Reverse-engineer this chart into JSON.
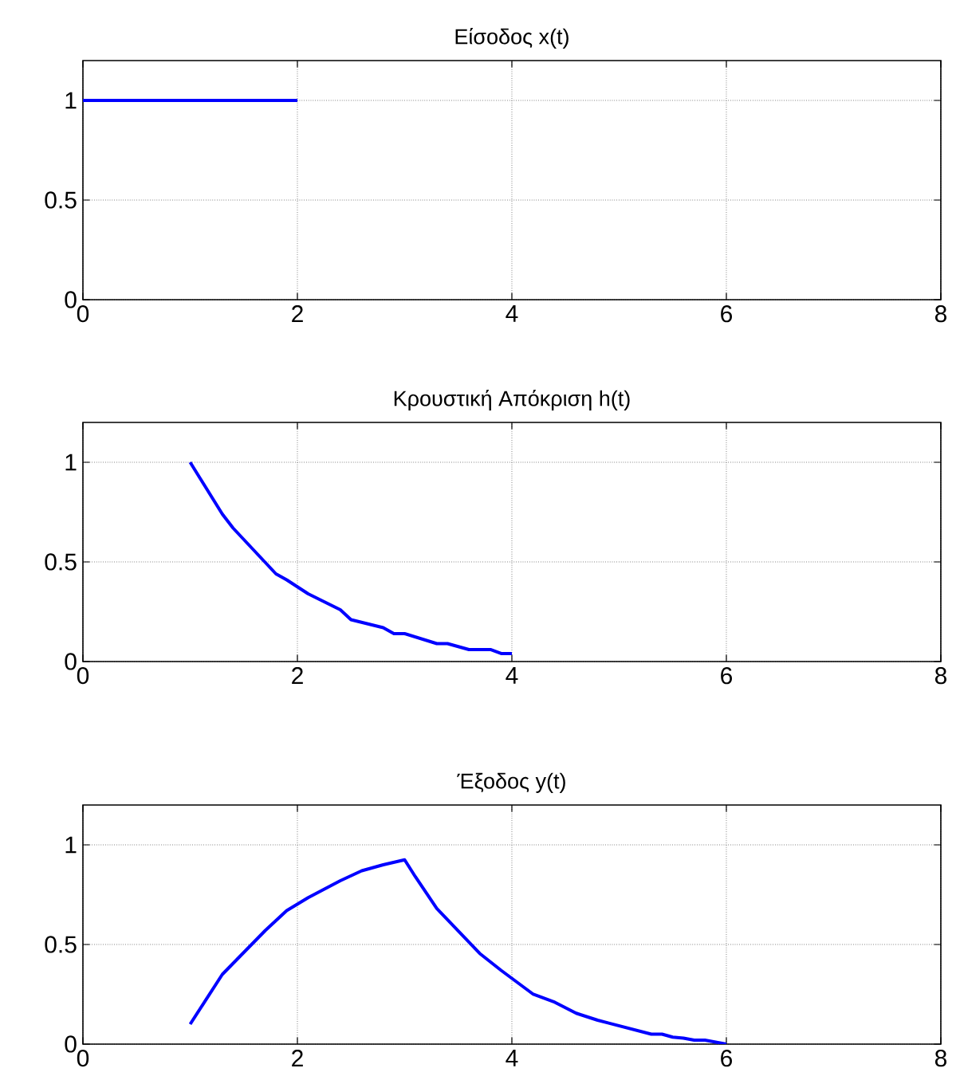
{
  "chart_data": [
    {
      "type": "line",
      "title": "Είσοδος x(t)",
      "x": [
        0,
        2
      ],
      "series": [
        {
          "color": "#0000ff",
          "values": [
            1,
            1
          ]
        }
      ],
      "xlim": [
        0,
        8
      ],
      "ylim": [
        0,
        1.2
      ],
      "xticks": [
        0,
        2,
        4,
        6,
        8
      ],
      "yticks": [
        0,
        0.5,
        1
      ],
      "grid": true
    },
    {
      "type": "line",
      "title": "Κρουστική Απόκριση h(t)",
      "x": [
        1,
        1.3,
        1.4,
        1.8,
        1.9,
        2.1,
        2.4,
        2.5,
        2.8,
        2.9,
        3.0,
        3.3,
        3.4,
        3.6,
        3.8,
        3.9,
        4
      ],
      "series": [
        {
          "color": "#0000ff",
          "values": [
            1,
            0.74,
            0.67,
            0.44,
            0.41,
            0.34,
            0.26,
            0.21,
            0.17,
            0.14,
            0.14,
            0.09,
            0.09,
            0.06,
            0.06,
            0.04,
            0.04
          ]
        }
      ],
      "xlim": [
        0,
        8
      ],
      "ylim": [
        0,
        1.2
      ],
      "xticks": [
        0,
        2,
        4,
        6,
        8
      ],
      "yticks": [
        0,
        0.5,
        1
      ],
      "grid": true
    },
    {
      "type": "line",
      "title": "Έξοδος y(t)",
      "x": [
        1,
        1.3,
        1.7,
        1.9,
        2.1,
        2.4,
        2.6,
        2.8,
        3,
        3.1,
        3.2,
        3.3,
        3.7,
        3.9,
        4,
        4.2,
        4.4,
        4.6,
        4.8,
        5.3,
        5.4,
        5.5,
        5.6,
        5.7,
        5.8,
        6
      ],
      "series": [
        {
          "color": "#0000ff",
          "values": [
            0.1,
            0.35,
            0.57,
            0.67,
            0.735,
            0.82,
            0.87,
            0.9,
            0.925,
            0.84,
            0.76,
            0.68,
            0.455,
            0.37,
            0.33,
            0.25,
            0.21,
            0.155,
            0.12,
            0.05,
            0.05,
            0.035,
            0.03,
            0.02,
            0.02,
            0
          ]
        }
      ],
      "xlim": [
        0,
        8
      ],
      "ylim": [
        0,
        1.2
      ],
      "xticks": [
        0,
        2,
        4,
        6,
        8
      ],
      "yticks": [
        0,
        0.5,
        1
      ],
      "grid": true
    }
  ]
}
